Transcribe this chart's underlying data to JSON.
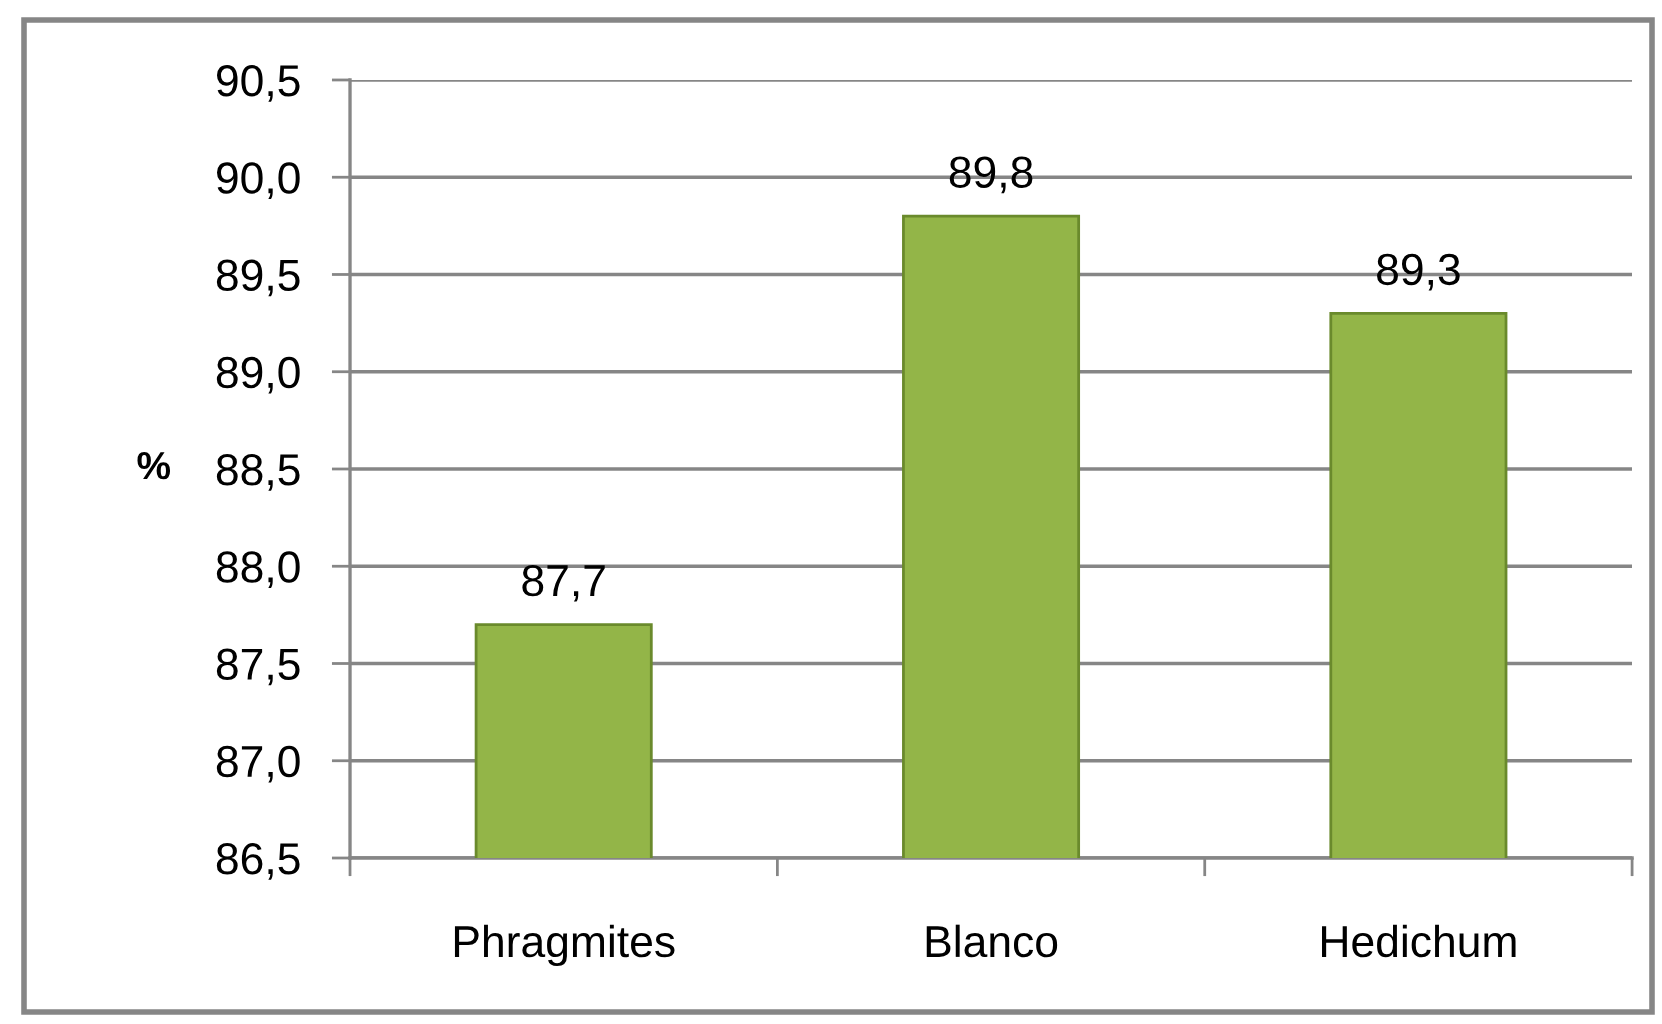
{
  "chart_data": {
    "type": "bar",
    "ylabel": "%",
    "categories": [
      "Phragmites",
      "Blanco",
      "Hedichum"
    ],
    "values": [
      87.7,
      89.8,
      89.3
    ],
    "value_labels": [
      "87,7",
      "89,8",
      "89,3"
    ],
    "color": "#93b548",
    "ylim": [
      86.5,
      90.5
    ],
    "yticks": [
      {
        "value": 86.5,
        "label": "86,5"
      },
      {
        "value": 87.0,
        "label": "87,0"
      },
      {
        "value": 87.5,
        "label": "87,5"
      },
      {
        "value": 88.0,
        "label": "88,0"
      },
      {
        "value": 88.5,
        "label": "88,5"
      },
      {
        "value": 89.0,
        "label": "89,0"
      },
      {
        "value": 89.5,
        "label": "89,5"
      },
      {
        "value": 90.0,
        "label": "90,0"
      },
      {
        "value": 90.5,
        "label": "90,5"
      }
    ],
    "grid": "y"
  }
}
